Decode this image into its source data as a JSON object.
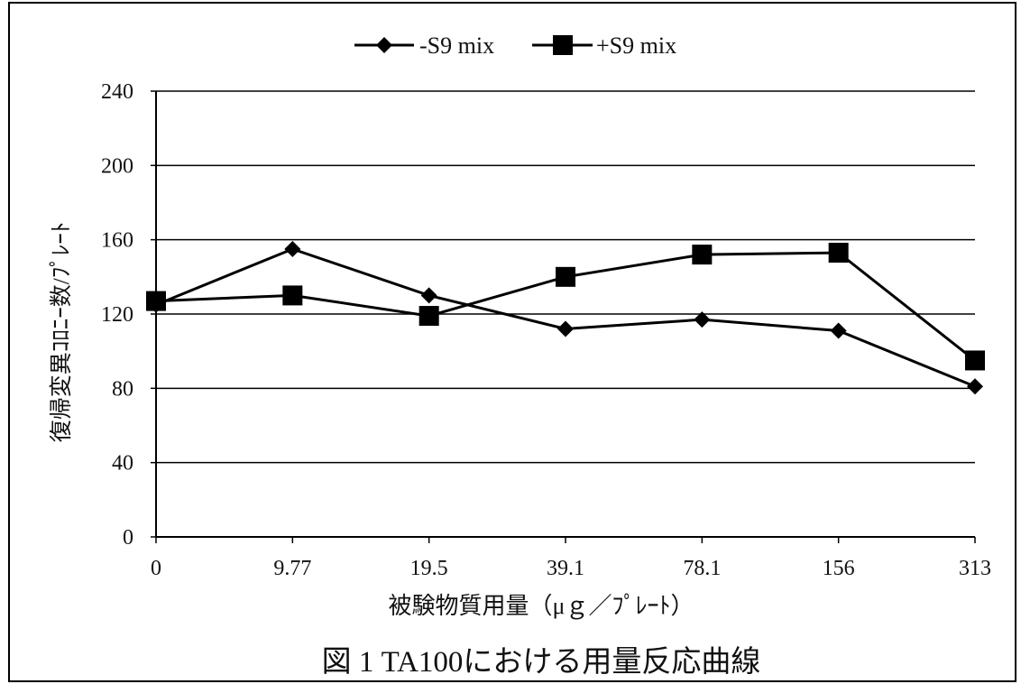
{
  "chart_data": {
    "type": "line",
    "caption": "図 1  TA100における用量反応曲線",
    "xlabel": "被験物質用量（μｇ／ﾌﾟﾚｰﾄ）",
    "ylabel": "復帰変異ｺﾛﾆｰ数/ﾌﾟﾚｰﾄ",
    "categories": [
      "0",
      "9.77",
      "19.5",
      "39.1",
      "78.1",
      "156",
      "313"
    ],
    "ylim": [
      0,
      240
    ],
    "yticks": [
      "0",
      "40",
      "80",
      "120",
      "160",
      "200",
      "240"
    ],
    "grid": true,
    "legend_position": "top",
    "series": [
      {
        "name": "-S9 mix",
        "marker": "diamond",
        "color": "#000000",
        "values": [
          125,
          155,
          130,
          112,
          117,
          111,
          81
        ]
      },
      {
        "name": "+S9 mix",
        "marker": "square",
        "color": "#000000",
        "values": [
          127,
          130,
          119,
          140,
          152,
          153,
          95
        ]
      }
    ]
  }
}
